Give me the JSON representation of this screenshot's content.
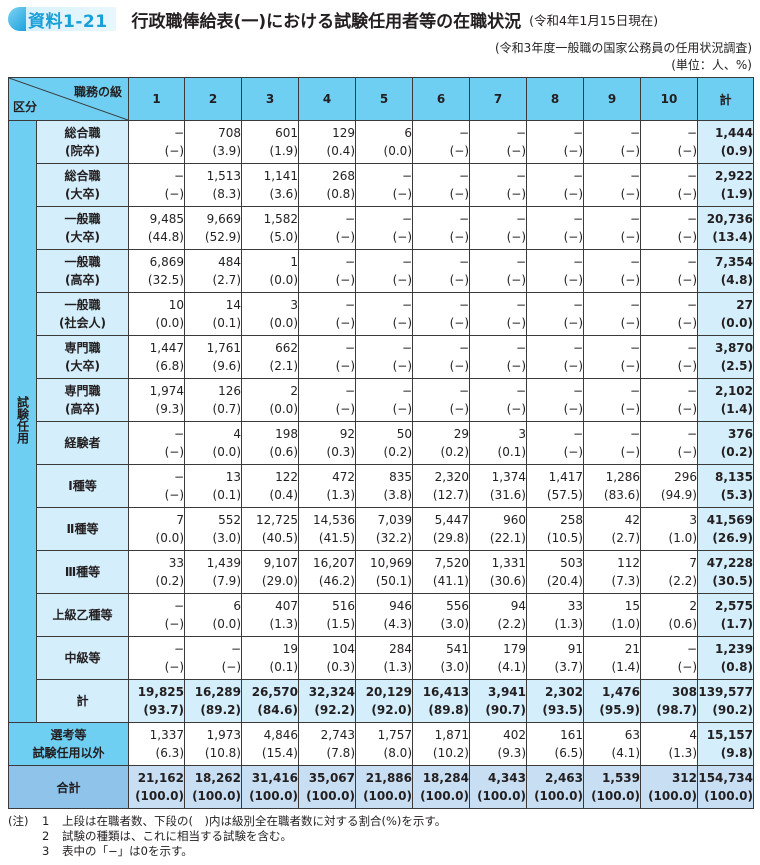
{
  "header": {
    "badge": "資料1-21",
    "title": "行政職俸給表(一)における試験任用者等の在職状況",
    "subtitle": "(令和4年1月15日現在)",
    "source": "(令和3年度一般職の国家公務員の任用状況調査)",
    "unit": "(単位：人、%)"
  },
  "table": {
    "corner_top": "職務の級",
    "corner_bottom": "区分",
    "columns": [
      "1",
      "2",
      "3",
      "4",
      "5",
      "6",
      "7",
      "8",
      "9",
      "10",
      "計"
    ],
    "group_label": "試験任用",
    "rows": [
      {
        "label1": "総合職",
        "label2": "(院卒)",
        "counts": [
          "−",
          "708",
          "601",
          "129",
          "6",
          "−",
          "−",
          "−",
          "−",
          "−",
          "1,444"
        ],
        "pcts": [
          "(−)",
          "(3.9)",
          "(1.9)",
          "(0.4)",
          "(0.0)",
          "(−)",
          "(−)",
          "(−)",
          "(−)",
          "(−)",
          "(0.9)"
        ]
      },
      {
        "label1": "総合職",
        "label2": "(大卒)",
        "counts": [
          "−",
          "1,513",
          "1,141",
          "268",
          "−",
          "−",
          "−",
          "−",
          "−",
          "−",
          "2,922"
        ],
        "pcts": [
          "(−)",
          "(8.3)",
          "(3.6)",
          "(0.8)",
          "(−)",
          "(−)",
          "(−)",
          "(−)",
          "(−)",
          "(−)",
          "(1.9)"
        ]
      },
      {
        "label1": "一般職",
        "label2": "(大卒)",
        "counts": [
          "9,485",
          "9,669",
          "1,582",
          "−",
          "−",
          "−",
          "−",
          "−",
          "−",
          "−",
          "20,736"
        ],
        "pcts": [
          "(44.8)",
          "(52.9)",
          "(5.0)",
          "(−)",
          "(−)",
          "(−)",
          "(−)",
          "(−)",
          "(−)",
          "(−)",
          "(13.4)"
        ]
      },
      {
        "label1": "一般職",
        "label2": "(高卒)",
        "counts": [
          "6,869",
          "484",
          "1",
          "−",
          "−",
          "−",
          "−",
          "−",
          "−",
          "−",
          "7,354"
        ],
        "pcts": [
          "(32.5)",
          "(2.7)",
          "(0.0)",
          "(−)",
          "(−)",
          "(−)",
          "(−)",
          "(−)",
          "(−)",
          "(−)",
          "(4.8)"
        ]
      },
      {
        "label1": "一般職",
        "label2": "(社会人)",
        "counts": [
          "10",
          "14",
          "3",
          "−",
          "−",
          "−",
          "−",
          "−",
          "−",
          "−",
          "27"
        ],
        "pcts": [
          "(0.0)",
          "(0.1)",
          "(0.0)",
          "(−)",
          "(−)",
          "(−)",
          "(−)",
          "(−)",
          "(−)",
          "(−)",
          "(0.0)"
        ]
      },
      {
        "label1": "専門職",
        "label2": "(大卒)",
        "counts": [
          "1,447",
          "1,761",
          "662",
          "−",
          "−",
          "−",
          "−",
          "−",
          "−",
          "−",
          "3,870"
        ],
        "pcts": [
          "(6.8)",
          "(9.6)",
          "(2.1)",
          "(−)",
          "(−)",
          "(−)",
          "(−)",
          "(−)",
          "(−)",
          "(−)",
          "(2.5)"
        ]
      },
      {
        "label1": "専門職",
        "label2": "(高卒)",
        "counts": [
          "1,974",
          "126",
          "2",
          "−",
          "−",
          "−",
          "−",
          "−",
          "−",
          "−",
          "2,102"
        ],
        "pcts": [
          "(9.3)",
          "(0.7)",
          "(0.0)",
          "(−)",
          "(−)",
          "(−)",
          "(−)",
          "(−)",
          "(−)",
          "(−)",
          "(1.4)"
        ]
      },
      {
        "label1": "経験者",
        "label2": "",
        "counts": [
          "−",
          "4",
          "198",
          "92",
          "50",
          "29",
          "3",
          "−",
          "−",
          "−",
          "376"
        ],
        "pcts": [
          "(−)",
          "(0.0)",
          "(0.6)",
          "(0.3)",
          "(0.2)",
          "(0.2)",
          "(0.1)",
          "(−)",
          "(−)",
          "(−)",
          "(0.2)"
        ]
      },
      {
        "label1": "Ⅰ種等",
        "label2": "",
        "counts": [
          "−",
          "13",
          "122",
          "472",
          "835",
          "2,320",
          "1,374",
          "1,417",
          "1,286",
          "296",
          "8,135"
        ],
        "pcts": [
          "(−)",
          "(0.1)",
          "(0.4)",
          "(1.3)",
          "(3.8)",
          "(12.7)",
          "(31.6)",
          "(57.5)",
          "(83.6)",
          "(94.9)",
          "(5.3)"
        ]
      },
      {
        "label1": "Ⅱ種等",
        "label2": "",
        "counts": [
          "7",
          "552",
          "12,725",
          "14,536",
          "7,039",
          "5,447",
          "960",
          "258",
          "42",
          "3",
          "41,569"
        ],
        "pcts": [
          "(0.0)",
          "(3.0)",
          "(40.5)",
          "(41.5)",
          "(32.2)",
          "(29.8)",
          "(22.1)",
          "(10.5)",
          "(2.7)",
          "(1.0)",
          "(26.9)"
        ]
      },
      {
        "label1": "Ⅲ種等",
        "label2": "",
        "counts": [
          "33",
          "1,439",
          "9,107",
          "16,207",
          "10,969",
          "7,520",
          "1,331",
          "503",
          "112",
          "7",
          "47,228"
        ],
        "pcts": [
          "(0.2)",
          "(7.9)",
          "(29.0)",
          "(46.2)",
          "(50.1)",
          "(41.1)",
          "(30.6)",
          "(20.4)",
          "(7.3)",
          "(2.2)",
          "(30.5)"
        ]
      },
      {
        "label1": "上級乙種等",
        "label2": "",
        "counts": [
          "−",
          "6",
          "407",
          "516",
          "946",
          "556",
          "94",
          "33",
          "15",
          "2",
          "2,575"
        ],
        "pcts": [
          "(−)",
          "(0.0)",
          "(1.3)",
          "(1.5)",
          "(4.3)",
          "(3.0)",
          "(2.2)",
          "(1.3)",
          "(1.0)",
          "(0.6)",
          "(1.7)"
        ]
      },
      {
        "label1": "中級等",
        "label2": "",
        "counts": [
          "−",
          "−",
          "19",
          "104",
          "284",
          "541",
          "179",
          "91",
          "21",
          "−",
          "1,239"
        ],
        "pcts": [
          "(−)",
          "(−)",
          "(0.1)",
          "(0.3)",
          "(1.3)",
          "(3.0)",
          "(4.1)",
          "(3.7)",
          "(1.4)",
          "(−)",
          "(0.8)"
        ]
      }
    ],
    "subtotal": {
      "label": "計",
      "counts": [
        "19,825",
        "16,289",
        "26,570",
        "32,324",
        "20,129",
        "16,413",
        "3,941",
        "2,302",
        "1,476",
        "308",
        "139,577"
      ],
      "pcts": [
        "(93.7)",
        "(89.2)",
        "(84.6)",
        "(92.2)",
        "(92.0)",
        "(89.8)",
        "(90.7)",
        "(93.5)",
        "(95.9)",
        "(98.7)",
        "(90.2)"
      ]
    },
    "selection": {
      "label1": "選考等",
      "label2": "試験任用以外",
      "counts": [
        "1,337",
        "1,973",
        "4,846",
        "2,743",
        "1,757",
        "1,871",
        "402",
        "161",
        "63",
        "4",
        "15,157"
      ],
      "pcts": [
        "(6.3)",
        "(10.8)",
        "(15.4)",
        "(7.8)",
        "(8.0)",
        "(10.2)",
        "(9.3)",
        "(6.5)",
        "(4.1)",
        "(1.3)",
        "(9.8)"
      ]
    },
    "grand_total": {
      "label": "合計",
      "counts": [
        "21,162",
        "18,262",
        "31,416",
        "35,067",
        "21,886",
        "18,284",
        "4,343",
        "2,463",
        "1,539",
        "312",
        "154,734"
      ],
      "pcts": [
        "(100.0)",
        "(100.0)",
        "(100.0)",
        "(100.0)",
        "(100.0)",
        "(100.0)",
        "(100.0)",
        "(100.0)",
        "(100.0)",
        "(100.0)",
        "(100.0)"
      ]
    }
  },
  "notes": {
    "prefix": "(注)",
    "items": [
      {
        "num": "1",
        "text": "上段は在職者数、下段の(　)内は級別全在職者数に対する割合(%)を示す。"
      },
      {
        "num": "2",
        "text": "試験の種類は、これに相当する試験を含む。"
      },
      {
        "num": "3",
        "text": "表中の「−」は0を示す。"
      }
    ]
  },
  "colors": {
    "header_blue": "#6fcff3",
    "label_light_blue": "#d4eefb",
    "grand_total_blue": "#8fc3ea",
    "badge_blue": "#1aa0d8"
  }
}
